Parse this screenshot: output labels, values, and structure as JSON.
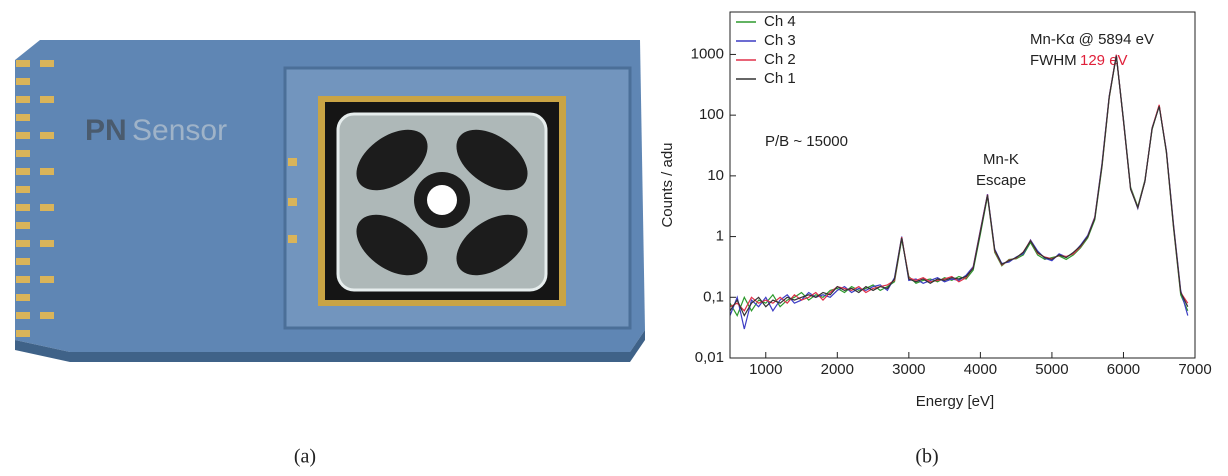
{
  "photo": {
    "brand": [
      "PN",
      "Sensor"
    ],
    "caption": "(a)"
  },
  "chart_data": {
    "type": "line",
    "caption": "(b)",
    "x_label": "Energy [eV]",
    "y_label": "Counts / adu",
    "annotations": [
      "Mn-Kα @ 5894 eV",
      "FWHM",
      "129 eV",
      "P/B ~ 15000",
      "Mn-K",
      "Escape"
    ],
    "x": [
      500,
      600,
      700,
      800,
      900,
      1000,
      1100,
      1200,
      1300,
      1400,
      1500,
      1600,
      1700,
      1800,
      1900,
      2000,
      2100,
      2200,
      2300,
      2400,
      2500,
      2600,
      2700,
      2800,
      2900,
      3000,
      3100,
      3200,
      3300,
      3400,
      3500,
      3600,
      3700,
      3800,
      3900,
      4000,
      4100,
      4200,
      4300,
      4400,
      4500,
      4600,
      4700,
      4800,
      4900,
      5000,
      5100,
      5200,
      5300,
      5400,
      5500,
      5600,
      5700,
      5800,
      5900,
      6000,
      6100,
      6200,
      6300,
      6400,
      6500,
      6600,
      6700,
      6800,
      6900
    ],
    "series": [
      {
        "name": "Ch 4",
        "color": "#2e9a2e",
        "values": [
          0.08,
          0.05,
          0.1,
          0.06,
          0.09,
          0.08,
          0.11,
          0.07,
          0.09,
          0.1,
          0.12,
          0.09,
          0.11,
          0.1,
          0.13,
          0.14,
          0.12,
          0.15,
          0.13,
          0.14,
          0.16,
          0.13,
          0.15,
          0.18,
          0.9,
          0.22,
          0.17,
          0.19,
          0.2,
          0.18,
          0.21,
          0.19,
          0.22,
          0.2,
          0.28,
          1.1,
          4.6,
          0.55,
          0.33,
          0.42,
          0.43,
          0.5,
          0.8,
          0.5,
          0.42,
          0.45,
          0.48,
          0.42,
          0.5,
          0.65,
          0.95,
          1.9,
          14,
          190,
          960,
          85,
          6.5,
          3.1,
          8.5,
          58,
          145,
          24,
          1.4,
          0.11,
          0.06
        ]
      },
      {
        "name": "Ch 3",
        "color": "#3c3cc4",
        "values": [
          0.05,
          0.1,
          0.03,
          0.09,
          0.07,
          0.1,
          0.06,
          0.09,
          0.11,
          0.08,
          0.09,
          0.12,
          0.1,
          0.11,
          0.1,
          0.13,
          0.15,
          0.12,
          0.14,
          0.13,
          0.15,
          0.16,
          0.13,
          0.21,
          1.0,
          0.19,
          0.2,
          0.17,
          0.19,
          0.21,
          0.18,
          0.2,
          0.19,
          0.23,
          0.32,
          1.3,
          5.0,
          0.62,
          0.36,
          0.38,
          0.46,
          0.52,
          0.88,
          0.58,
          0.44,
          0.4,
          0.52,
          0.46,
          0.53,
          0.72,
          1.05,
          2.1,
          16,
          205,
          980,
          82,
          6.2,
          2.9,
          8.2,
          62,
          142,
          26,
          1.6,
          0.13,
          0.05
        ]
      },
      {
        "name": "Ch 2",
        "color": "#e0304a",
        "values": [
          0.07,
          0.08,
          0.06,
          0.1,
          0.08,
          0.09,
          0.08,
          0.1,
          0.08,
          0.11,
          0.09,
          0.1,
          0.12,
          0.09,
          0.12,
          0.15,
          0.14,
          0.13,
          0.15,
          0.12,
          0.14,
          0.15,
          0.16,
          0.19,
          0.98,
          0.21,
          0.19,
          0.21,
          0.18,
          0.19,
          0.2,
          0.22,
          0.18,
          0.21,
          0.31,
          1.25,
          4.9,
          0.58,
          0.34,
          0.41,
          0.44,
          0.56,
          0.86,
          0.53,
          0.46,
          0.43,
          0.49,
          0.47,
          0.52,
          0.68,
          1.0,
          2.05,
          15,
          198,
          990,
          79,
          6.1,
          3.0,
          8.1,
          61,
          148,
          25,
          1.5,
          0.12,
          0.08
        ]
      },
      {
        "name": "Ch 1",
        "color": "#333333",
        "values": [
          0.06,
          0.09,
          0.05,
          0.08,
          0.1,
          0.07,
          0.09,
          0.08,
          0.1,
          0.09,
          0.1,
          0.11,
          0.1,
          0.12,
          0.11,
          0.15,
          0.13,
          0.14,
          0.12,
          0.15,
          0.13,
          0.15,
          0.14,
          0.2,
          0.95,
          0.2,
          0.18,
          0.2,
          0.17,
          0.2,
          0.19,
          0.21,
          0.2,
          0.22,
          0.3,
          1.2,
          4.8,
          0.6,
          0.35,
          0.4,
          0.45,
          0.55,
          0.85,
          0.55,
          0.45,
          0.42,
          0.5,
          0.45,
          0.55,
          0.7,
          1.0,
          2.0,
          15,
          200,
          950,
          80,
          6,
          3,
          8,
          60,
          140,
          25,
          1.5,
          0.12,
          0.07
        ]
      }
    ],
    "xlim": [
      500,
      7000
    ],
    "xticks": [
      1000,
      2000,
      3000,
      4000,
      5000,
      6000,
      7000
    ],
    "ylim": [
      0.01,
      5000
    ],
    "log_y": true,
    "yticks": [
      {
        "value": 0.01,
        "label": "0,01"
      },
      {
        "value": 0.1,
        "label": "0,1"
      },
      1,
      10,
      100,
      1000
    ],
    "legend": "upper left"
  }
}
